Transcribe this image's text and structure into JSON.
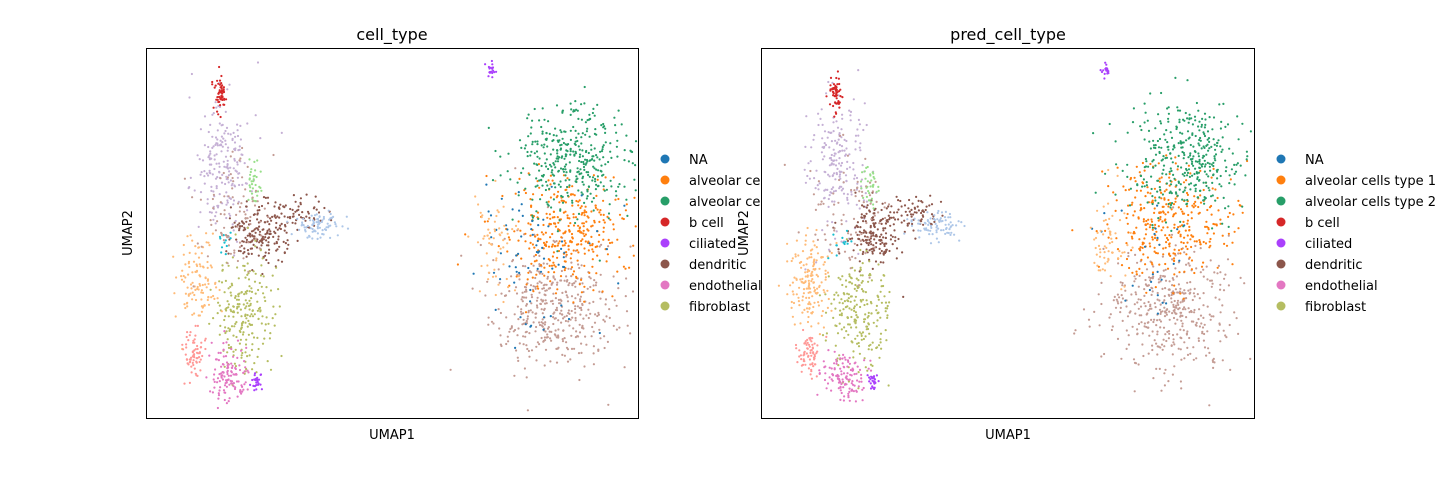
{
  "figure": {
    "background": "#ffffff",
    "point_style": "small scattered dots"
  },
  "chart_data": [
    {
      "type": "scatter",
      "title": "cell_type",
      "xlabel": "UMAP1",
      "ylabel": "UMAP2",
      "ticks_shown": false,
      "grid": false,
      "legend": {
        "placement": "right-outside",
        "entries": [
          "NA",
          "alveolar ce",
          "alveolar ce",
          "b cell",
          "ciliated",
          "dendritic",
          "endothelial",
          "fibroblast"
        ]
      }
    },
    {
      "type": "scatter",
      "title": "pred_cell_type",
      "xlabel": "UMAP1",
      "ylabel": "UMAP2",
      "ticks_shown": false,
      "grid": false,
      "legend": {
        "placement": "right-outside",
        "entries": [
          "NA",
          "alveolar cells type 1",
          "alveolar cells type 2",
          "b cell",
          "ciliated",
          "dendritic",
          "endothelial",
          "fibroblast"
        ]
      }
    }
  ],
  "palette": {
    "NA": "#1f77b4",
    "alveolar cells type 1": "#ff7f0e",
    "alveolar cells type 2": "#279e68",
    "b cell": "#d62728",
    "ciliated": "#aa40fc",
    "dendritic": "#8c564b",
    "endothelial": "#e377c2",
    "fibroblast": "#b5bd61",
    "light_blue_cluster": "#aec7e8",
    "light_orange_cluster": "#ffbb78",
    "salmon_cluster": "#ff9896",
    "lavender_cluster": "#c5b0d5",
    "tan_cluster": "#c49c94",
    "light_green_cluster": "#98df8a",
    "cyan_cluster": "#17becf"
  }
}
